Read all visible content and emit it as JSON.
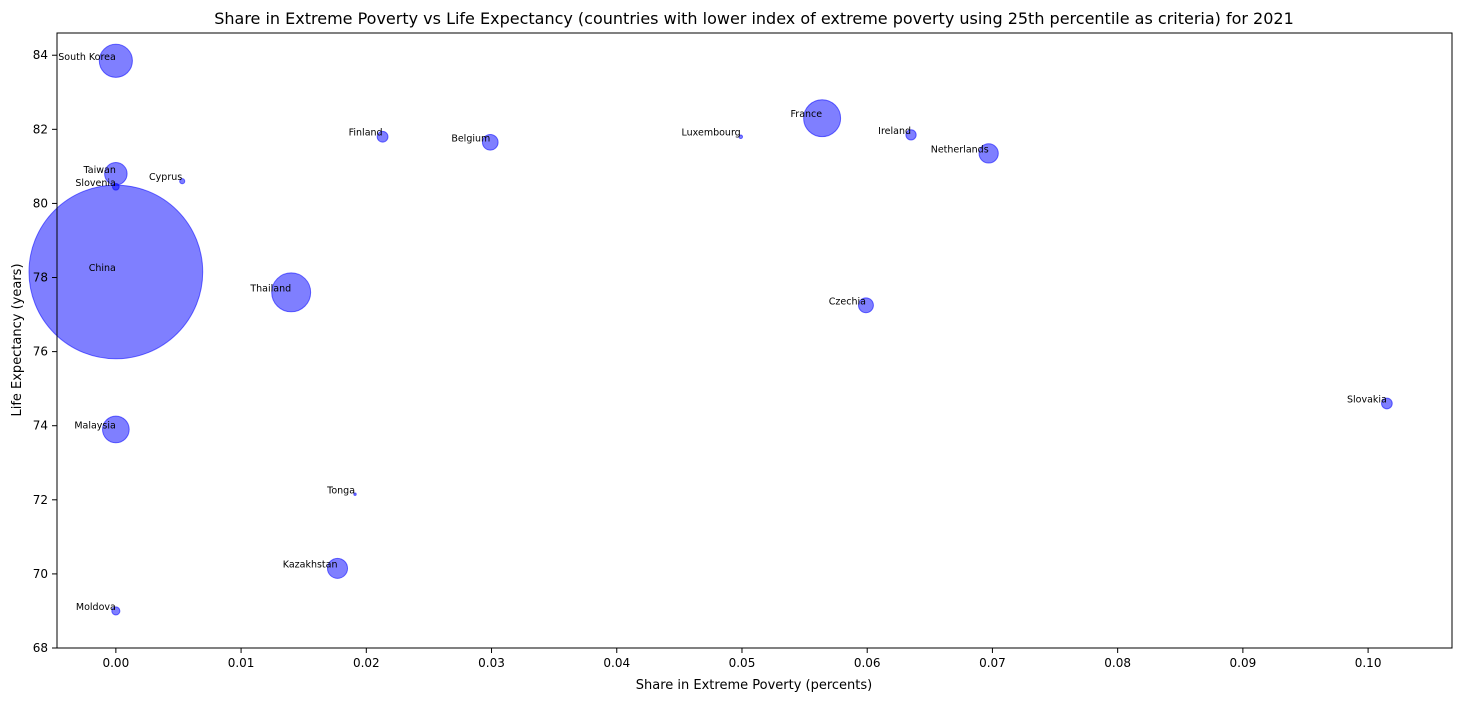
{
  "chart_data": {
    "type": "scatter",
    "title": "Share in Extreme Poverty vs Life Expectancy (countries with lower index of extreme poverty using 25th percentile as criteria) for 2021",
    "xlabel": "Share in Extreme Poverty (percents)",
    "ylabel": "Life Expectancy (years)",
    "xlim": [
      -0.0047,
      0.1067
    ],
    "ylim": [
      68,
      84.6
    ],
    "xticks": [
      0.0,
      0.01,
      0.02,
      0.03,
      0.04,
      0.05,
      0.06,
      0.07,
      0.08,
      0.09,
      0.1
    ],
    "xtick_labels": [
      "0.00",
      "0.01",
      "0.02",
      "0.03",
      "0.04",
      "0.05",
      "0.06",
      "0.07",
      "0.08",
      "0.09",
      "0.10"
    ],
    "yticks": [
      68,
      70,
      72,
      74,
      76,
      78,
      80,
      82,
      84
    ],
    "ytick_labels": [
      "68",
      "70",
      "72",
      "74",
      "76",
      "78",
      "80",
      "82",
      "84"
    ],
    "grid": false,
    "bubble_color": "#0000ff",
    "bubble_alpha": 0.5,
    "points": [
      {
        "label": "South Korea",
        "x": 0.0,
        "y": 83.85,
        "size": 51.8
      },
      {
        "label": "Finland",
        "x": 0.0213,
        "y": 81.8,
        "size": 5.5
      },
      {
        "label": "Belgium",
        "x": 0.0299,
        "y": 81.65,
        "size": 11.6
      },
      {
        "label": "Luxembourg",
        "x": 0.0499,
        "y": 81.8,
        "size": 0.6
      },
      {
        "label": "France",
        "x": 0.0564,
        "y": 82.3,
        "size": 64.5
      },
      {
        "label": "Ireland",
        "x": 0.0635,
        "y": 81.85,
        "size": 5.0
      },
      {
        "label": "Netherlands",
        "x": 0.0697,
        "y": 81.35,
        "size": 17.5
      },
      {
        "label": "Taiwan",
        "x": 0.0,
        "y": 80.8,
        "size": 23.9
      },
      {
        "label": "Slovenia",
        "x": 0.0,
        "y": 80.45,
        "size": 2.1
      },
      {
        "label": "Cyprus",
        "x": 0.0053,
        "y": 80.6,
        "size": 1.2
      },
      {
        "label": "China",
        "x": 0.0,
        "y": 78.15,
        "size": 1425.9
      },
      {
        "label": "Thailand",
        "x": 0.014,
        "y": 77.6,
        "size": 71.6
      },
      {
        "label": "Czechia",
        "x": 0.0599,
        "y": 77.25,
        "size": 10.5
      },
      {
        "label": "Slovakia",
        "x": 0.1015,
        "y": 74.6,
        "size": 5.4
      },
      {
        "label": "Malaysia",
        "x": 0.0,
        "y": 73.9,
        "size": 33.6
      },
      {
        "label": "Tonga",
        "x": 0.0191,
        "y": 72.15,
        "size": 0.1
      },
      {
        "label": "Kazakhstan",
        "x": 0.0177,
        "y": 70.15,
        "size": 19.0
      },
      {
        "label": "Moldova",
        "x": 0.0,
        "y": 69.0,
        "size": 3.1
      }
    ]
  }
}
